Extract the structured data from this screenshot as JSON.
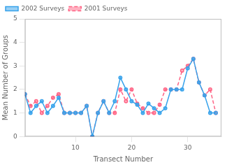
{
  "chart_data": {
    "type": "line",
    "xlabel": "Transect Number",
    "ylabel": "Mean Number of Groups",
    "x": [
      1,
      2,
      3,
      4,
      5,
      6,
      7,
      8,
      9,
      10,
      11,
      12,
      13,
      14,
      15,
      16,
      17,
      18,
      19,
      20,
      21,
      22,
      23,
      24,
      25,
      26,
      27,
      28,
      29,
      30,
      31,
      32,
      33,
      34,
      35
    ],
    "series": [
      {
        "name": "2002 Surveys",
        "line_style": "solid",
        "marker": "circle",
        "values": [
          1.8,
          1.0,
          1.3,
          1.5,
          1.0,
          1.3,
          1.65,
          1.0,
          1.0,
          1.0,
          1.0,
          1.3,
          0.0,
          1.0,
          1.5,
          1.0,
          1.5,
          2.5,
          2.0,
          1.5,
          1.35,
          1.0,
          1.4,
          1.2,
          1.0,
          1.2,
          2.0,
          2.0,
          2.0,
          2.9,
          3.3,
          2.3,
          1.75,
          1.0,
          1.0
        ]
      },
      {
        "name": "2001 Surveys",
        "line_style": "dashed",
        "marker": "circle",
        "values": [
          1.8,
          1.3,
          1.5,
          1.0,
          1.3,
          1.65,
          1.8,
          1.0,
          1.0,
          1.0,
          1.0,
          1.3,
          0.0,
          1.0,
          1.5,
          1.0,
          1.0,
          2.0,
          1.5,
          2.0,
          1.4,
          1.2,
          1.0,
          1.0,
          1.35,
          2.0,
          2.0,
          2.0,
          2.8,
          3.0,
          3.3,
          2.3,
          1.75,
          2.0,
          1.0
        ]
      }
    ],
    "xlim": [
      1,
      36
    ],
    "ylim": [
      0,
      5
    ],
    "xticks": [
      10,
      20,
      30
    ],
    "yticks": [
      0,
      1,
      2,
      3,
      4,
      5
    ],
    "grid": false,
    "legend": "upper left"
  }
}
